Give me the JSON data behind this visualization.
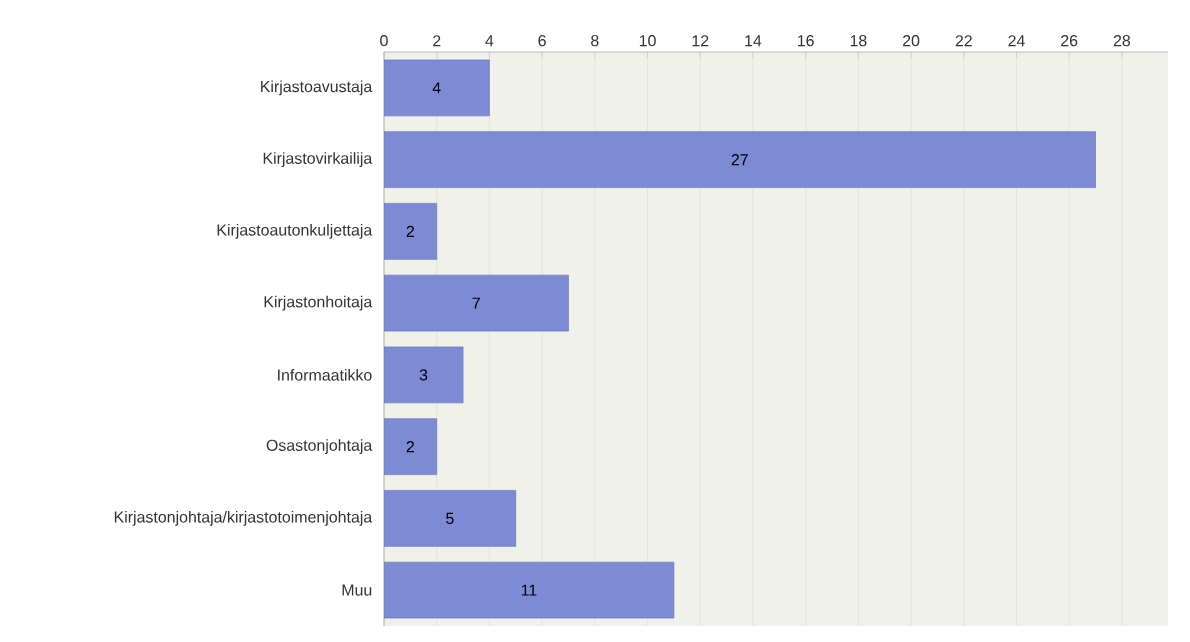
{
  "chart_data": {
    "type": "bar",
    "orientation": "horizontal",
    "categories": [
      "Kirjastoavustaja",
      "Kirjastovirkailija",
      "Kirjastoautonkuljettaja",
      "Kirjastonhoitaja",
      "Informaatikko",
      "Osastonjohtaja",
      "Kirjastonjohtaja/kirjastotoimenjohtaja",
      "Muu"
    ],
    "values": [
      4,
      27,
      2,
      7,
      3,
      2,
      5,
      11
    ],
    "color": "#7d8ad6",
    "xlim": [
      0,
      29.75
    ],
    "xticks": [
      0,
      2,
      4,
      6,
      8,
      10,
      12,
      14,
      16,
      18,
      20,
      22,
      24,
      26,
      28
    ],
    "grid": "x",
    "data_labels": true
  }
}
